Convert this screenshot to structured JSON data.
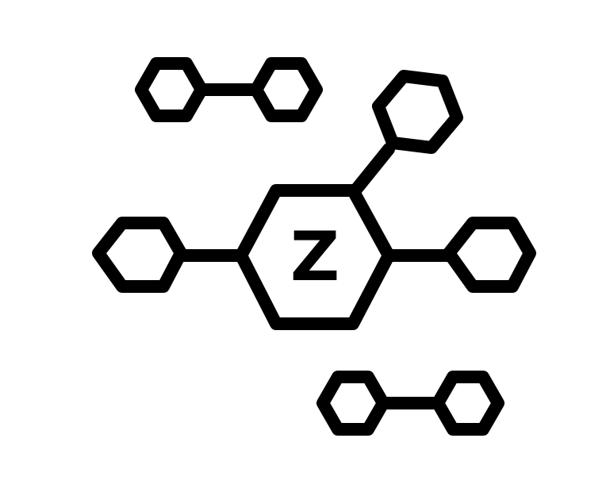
{
  "diagram": {
    "center_node": {
      "label": "Z"
    },
    "colors": {
      "stroke": "#000000",
      "background": "#ffffff"
    }
  }
}
